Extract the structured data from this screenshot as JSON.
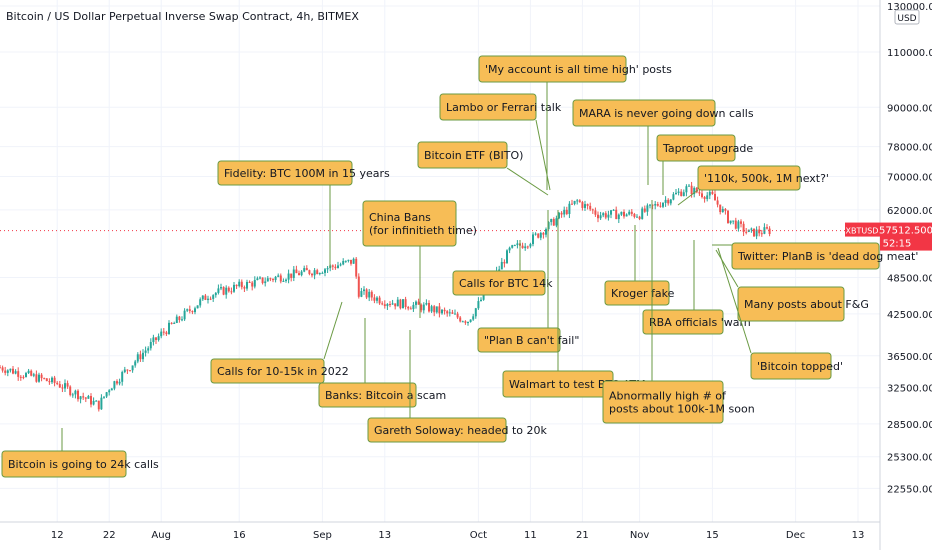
{
  "title": "Bitcoin / US Dollar Perpetual Inverse Swap Contract, 4h, BITMEX",
  "currency": "USD",
  "price_label": {
    "symbol": "XBTUSD",
    "price": "57512.500",
    "countdown": "52:15",
    "color": "#f23645"
  },
  "colors": {
    "up": "#26a69a",
    "down": "#ef5350",
    "box": "#f7bd56",
    "box_border": "#6a9a43"
  },
  "chart_data": {
    "type": "line",
    "title": "Bitcoin / US Dollar Perpetual Inverse Swap Contract, 4h, BITMEX",
    "yscale": "log",
    "ylim": [
      21000,
      130000
    ],
    "y_ticks": [
      "130000.000",
      "110000.000",
      "90000.000",
      "78000.000",
      "70000.000",
      "62000.000",
      "48500.000",
      "42500.000",
      "36500.000",
      "32500.000",
      "28500.000",
      "25300.000",
      "22550.000"
    ],
    "x_ticks": [
      "12",
      "22",
      "Aug",
      "16",
      "Sep",
      "13",
      "Oct",
      "11",
      "21",
      "Nov",
      "15",
      "Dec",
      "13"
    ],
    "x": [
      "Jul 1",
      "Jul 12",
      "Jul 20",
      "Jul 22",
      "Aug 1",
      "Aug 10",
      "Aug 16",
      "Aug 23",
      "Sep 1",
      "Sep 7",
      "Sep 8",
      "Sep 13",
      "Sep 21",
      "Sep 29",
      "Oct 1",
      "Oct 7",
      "Oct 11",
      "Oct 15",
      "Oct 20",
      "Oct 24",
      "Nov 1",
      "Nov 10",
      "Nov 15",
      "Nov 18",
      "Nov 22",
      "Nov 26"
    ],
    "y": [
      35000,
      33000,
      30500,
      32500,
      39500,
      45500,
      47000,
      48500,
      50000,
      51500,
      46000,
      44500,
      43500,
      41500,
      44000,
      53500,
      55500,
      59000,
      64000,
      61000,
      61000,
      67000,
      65000,
      60000,
      57000,
      57512
    ],
    "annotations": [
      "Bitcoin is going to 24k calls",
      "Fidelity: BTC 100M in 15 years",
      "Calls for 10-15k in 2022",
      "Banks: Bitcoin a scam",
      "China Bans\n(for infinitieth time)",
      "Gareth Soloway: headed to 20k",
      "Calls for BTC 14k",
      "Bitcoin ETF (BITO)",
      "Lambo or Ferrari talk",
      "'My account is all time high' posts",
      "\"Plan B can't fail\"",
      "Walmart to test BTC ATM",
      "MARA is never going down calls",
      "Taproot upgrade",
      "'110k, 500k, 1M next?'",
      "Kroger fake",
      "RBA officials 'warn'",
      "Abnormally high # of\nposts about 100k-1M soon",
      "Twitter: PlanB is 'dead dog meat'",
      "Many posts about F&G",
      "'Bitcoin topped'"
    ]
  }
}
